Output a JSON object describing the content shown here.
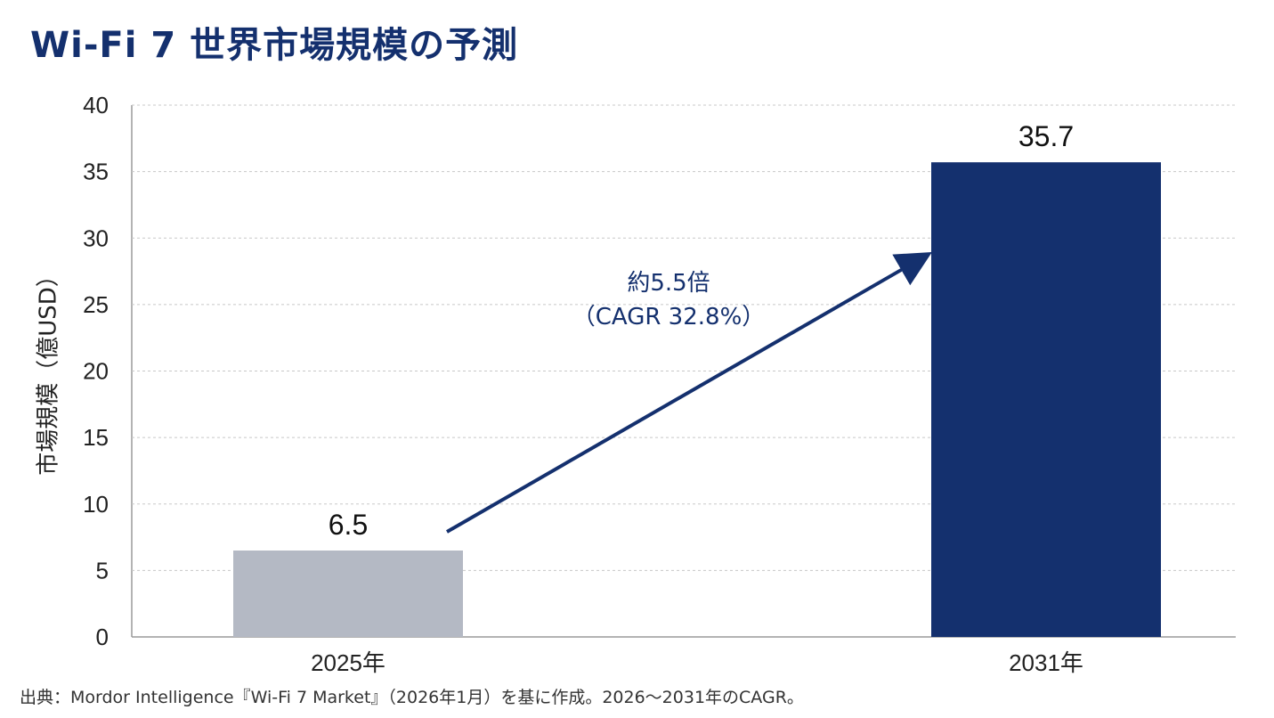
{
  "chart_data": {
    "type": "bar",
    "title": "Wi-Fi 7 世界市場規模の予測",
    "ylabel": "市場規模（億USD）",
    "xlabel": "",
    "categories": [
      "2025年",
      "2031年"
    ],
    "values": [
      6.5,
      35.7
    ],
    "data_labels": [
      "6.5",
      "35.7"
    ],
    "bar_colors": [
      "#b4b9c4",
      "#14306e"
    ],
    "ylim": [
      0,
      40
    ],
    "yticks": [
      0,
      5,
      10,
      15,
      20,
      25,
      30,
      35,
      40
    ],
    "grid": true,
    "annotation": {
      "line1": "約5.5倍",
      "line2": "（CAGR 32.8%）",
      "color": "#14306e"
    }
  },
  "source_note": "出典：Mordor Intelligence『Wi-Fi 7 Market』（2026年1月）を基に作成。2026〜2031年のCAGR。"
}
